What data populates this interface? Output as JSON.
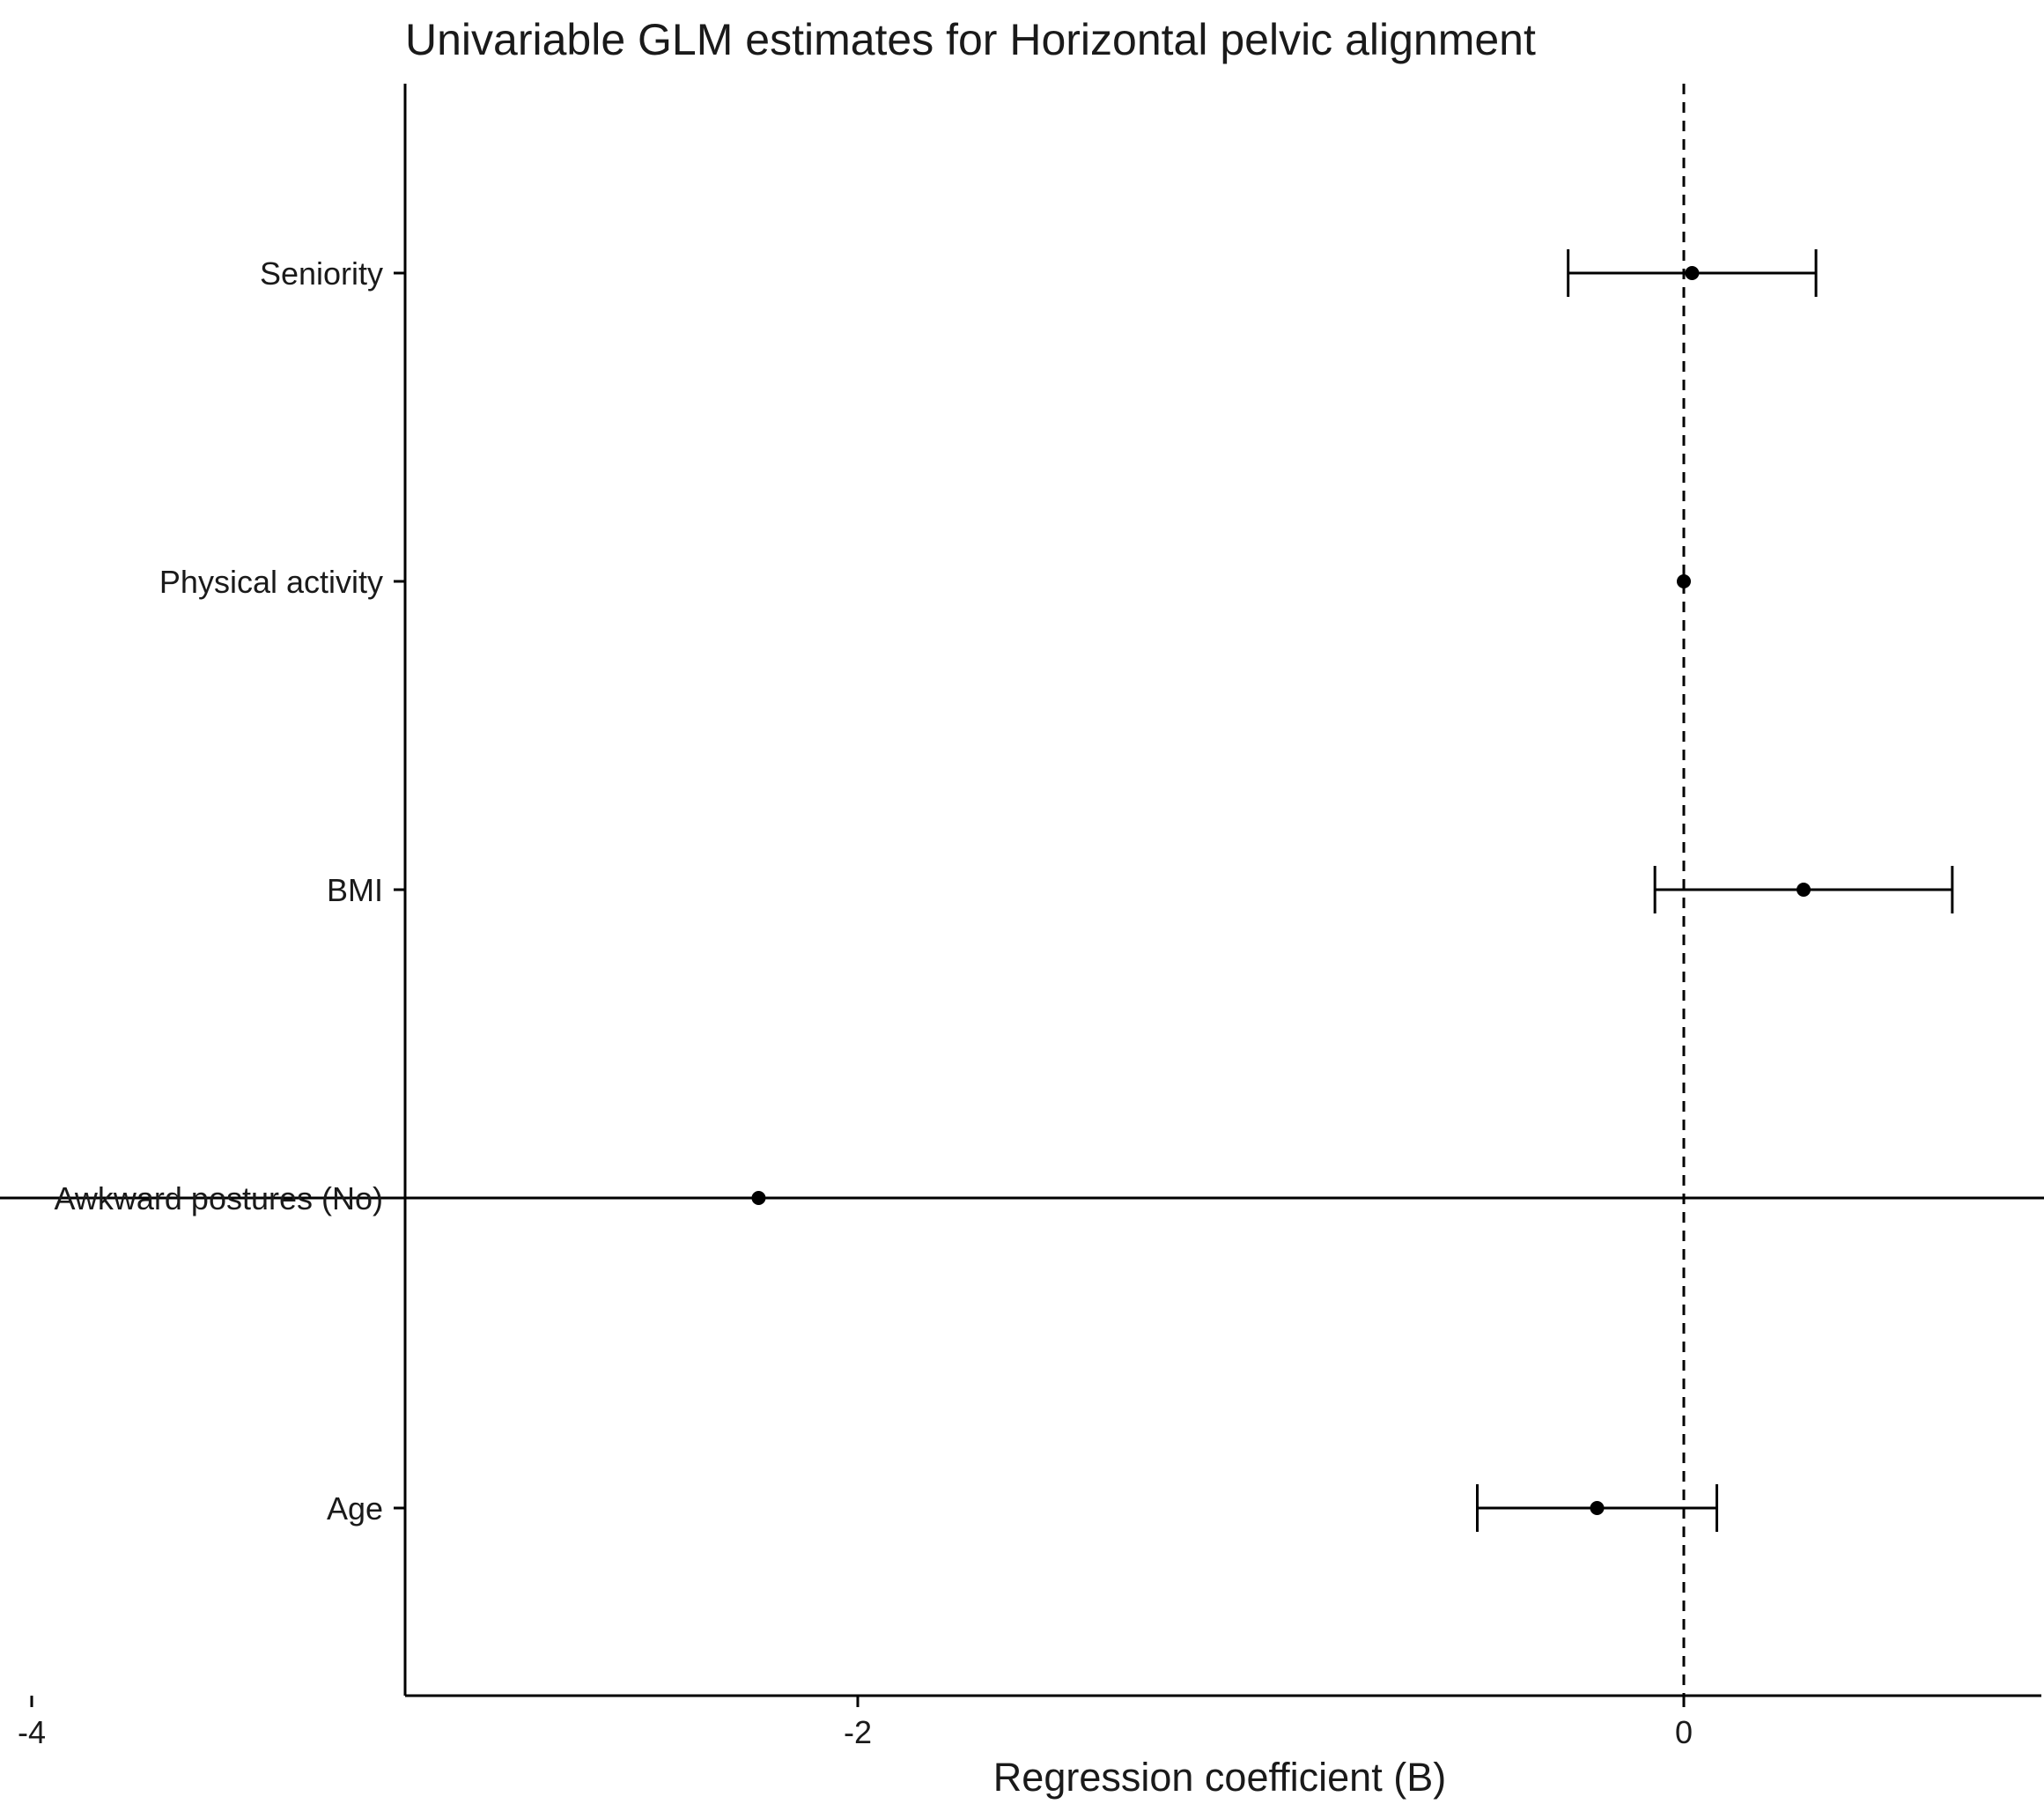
{
  "chart_data": {
    "type": "forest",
    "title": "Univariable GLM estimates for Horizontal pelvic alignment",
    "xlabel": "Regression coefficient (B)",
    "ylabel": "",
    "xlim": [
      -6.1,
      1.75
    ],
    "xticks": [
      -6,
      -4,
      -2,
      0
    ],
    "reference_line": 0,
    "grid": false,
    "legend": "none",
    "colors": {
      "ink": "#000000",
      "text": "#1a1a1a"
    },
    "categories": [
      "Seniority",
      "Physical activity",
      "BMI",
      "Awkward postures (No)",
      "Age"
    ],
    "estimates": [
      {
        "label": "Seniority",
        "estimate": 0.02,
        "lower": -0.28,
        "upper": 0.32
      },
      {
        "label": "Physical activity",
        "estimate": 0.0,
        "lower": 0.0,
        "upper": 0.0
      },
      {
        "label": "BMI",
        "estimate": 0.29,
        "lower": -0.07,
        "upper": 0.65
      },
      {
        "label": "Awkward postures (No)",
        "estimate": -2.24,
        "lower": -5.81,
        "upper": 1.35
      },
      {
        "label": "Age",
        "estimate": -0.21,
        "lower": -0.5,
        "upper": 0.08
      }
    ]
  }
}
